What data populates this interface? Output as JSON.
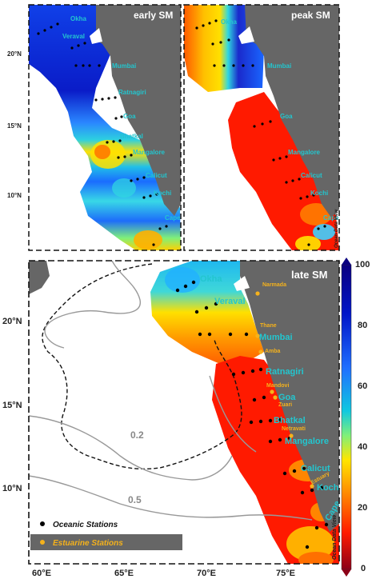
{
  "panels": {
    "early": {
      "title": "early SM"
    },
    "peak": {
      "title": "peak SM"
    },
    "late": {
      "title": "late SM"
    }
  },
  "small_lat_labels": [
    "20°N",
    "15°N",
    "10°N"
  ],
  "lat_labels": [
    "20°N",
    "15°N",
    "10°N"
  ],
  "lon_labels": [
    "60°E",
    "65°E",
    "70°E",
    "75°E"
  ],
  "cities": [
    "Okha",
    "Veraval",
    "Mumbai",
    "Ratnagiri",
    "Goa",
    "Bhatkal",
    "Mangalore",
    "Calicut",
    "Kochi",
    "Cape"
  ],
  "estuaries": [
    "Narmada",
    "Thane",
    "Amba",
    "Mandovi",
    "Zuari",
    "Netravati",
    "Estuary"
  ],
  "contours": [
    "0.2",
    "0.5"
  ],
  "colorbar": {
    "ticks": [
      "100",
      "80",
      "60",
      "40",
      "20",
      "0"
    ],
    "min": 0,
    "max": 100,
    "colors": [
      "#8b0018",
      "#ff1a00",
      "#ff8a00",
      "#ffe600",
      "#7ff07a",
      "#10c8e0",
      "#1f6fff",
      "#0015c8",
      "#0a0080"
    ]
  },
  "watermark": "Ocean Data View",
  "legend": {
    "oceanic": "Oceanic Stations",
    "estuarine": "Estuarine Stations",
    "oceanic_color": "#000000",
    "estuarine_color": "#f5b21c"
  },
  "colors": {
    "land": "#666666"
  }
}
